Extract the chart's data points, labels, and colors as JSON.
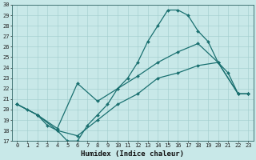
{
  "xlabel": "Humidex (Indice chaleur)",
  "bg_color": "#c8e8e8",
  "line_color": "#1a7070",
  "xlim": [
    -0.5,
    23.5
  ],
  "ylim": [
    17,
    30
  ],
  "yticks": [
    17,
    18,
    19,
    20,
    21,
    22,
    23,
    24,
    25,
    26,
    27,
    28,
    29,
    30
  ],
  "xticks": [
    0,
    1,
    2,
    3,
    4,
    5,
    6,
    7,
    8,
    9,
    10,
    11,
    12,
    13,
    14,
    15,
    16,
    17,
    18,
    19,
    20,
    21,
    22,
    23
  ],
  "line1_x": [
    0,
    1,
    2,
    3,
    4,
    5,
    6,
    7,
    8,
    9,
    10,
    11,
    12,
    13,
    14,
    15,
    16,
    17,
    18,
    19,
    20,
    21,
    22,
    23
  ],
  "line1_y": [
    20.5,
    20.0,
    19.5,
    18.5,
    18.0,
    17.0,
    17.0,
    18.5,
    19.5,
    20.5,
    22.0,
    23.0,
    24.5,
    26.5,
    28.0,
    29.5,
    29.5,
    29.0,
    27.5,
    26.5,
    24.5,
    23.5,
    21.5,
    21.5
  ],
  "line2_x": [
    0,
    2,
    4,
    6,
    8,
    10,
    12,
    14,
    16,
    18,
    20,
    22,
    23
  ],
  "line2_y": [
    20.5,
    19.5,
    18.2,
    22.5,
    20.8,
    22.0,
    23.2,
    24.5,
    25.5,
    26.3,
    24.5,
    21.5,
    21.5
  ],
  "line3_x": [
    0,
    2,
    4,
    6,
    8,
    10,
    12,
    14,
    16,
    18,
    20,
    22,
    23
  ],
  "line3_y": [
    20.5,
    19.5,
    18.0,
    17.5,
    19.0,
    20.5,
    21.5,
    23.0,
    23.5,
    24.2,
    24.5,
    21.5,
    21.5
  ],
  "grid_color": "#a0cccc",
  "markersize": 2.0,
  "linewidth": 0.9,
  "tick_fontsize": 5.0,
  "xlabel_fontsize": 6.5
}
